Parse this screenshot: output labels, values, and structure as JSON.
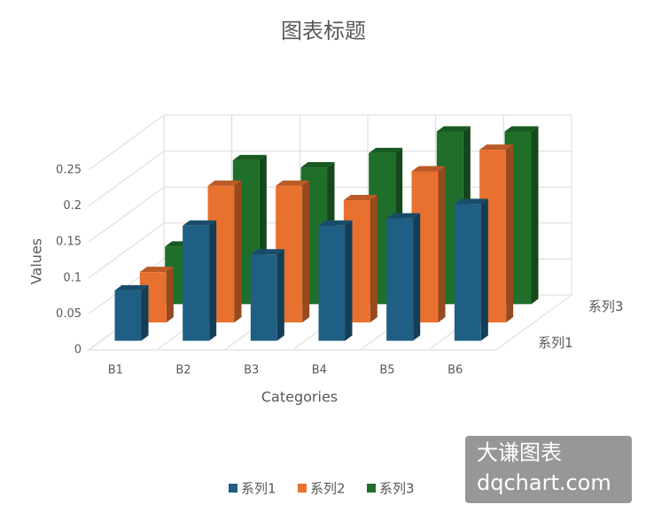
{
  "chart_data": {
    "type": "bar3d",
    "title": "图表标题",
    "x_label": "Categories",
    "y_label": "Values",
    "categories": [
      "B1",
      "B2",
      "B3",
      "B4",
      "B5",
      "B6"
    ],
    "depth_categories": [
      "系列1",
      null,
      "系列3"
    ],
    "series": [
      {
        "name": "系列1",
        "color": "#1f5f84",
        "values": [
          0.07,
          0.16,
          0.12,
          0.16,
          0.17,
          0.19
        ]
      },
      {
        "name": "系列2",
        "color": "#e8712f",
        "values": [
          0.07,
          0.19,
          0.19,
          0.17,
          0.21,
          0.24
        ]
      },
      {
        "name": "系列3",
        "color": "#1f6f2a",
        "values": [
          0.08,
          0.2,
          0.19,
          0.21,
          0.24,
          0.24
        ]
      }
    ],
    "ylim": [
      0,
      0.25
    ],
    "yticks": [
      0,
      0.05,
      0.1,
      0.15,
      0.2,
      0.25
    ],
    "grid": true,
    "legend": "bottom"
  },
  "watermark": {
    "line1": "大谦图表",
    "line2": "dqchart.com"
  }
}
